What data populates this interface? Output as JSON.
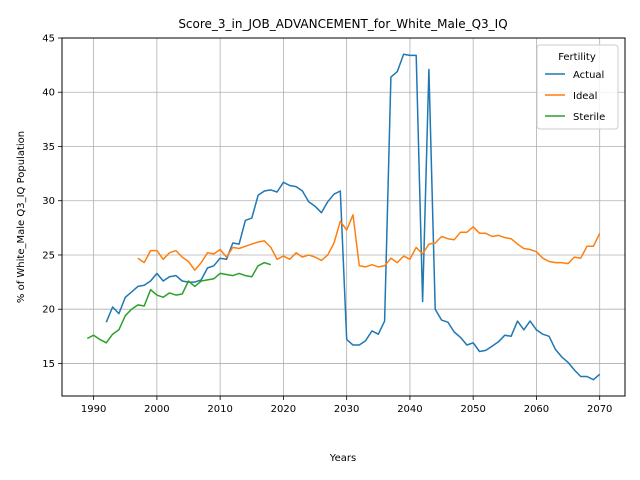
{
  "chart_data": {
    "type": "line",
    "title": "Score_3_in_JOB_ADVANCEMENT_for_White_Male_Q3_IQ",
    "xlabel": "Years",
    "ylabel": "% of White_Male Q3_IQ Population",
    "xlim": [
      1985,
      2074
    ],
    "ylim": [
      12,
      45
    ],
    "xticks": [
      1990,
      2000,
      2010,
      2020,
      2030,
      2040,
      2050,
      2060,
      2070
    ],
    "yticks": [
      15,
      20,
      25,
      30,
      35,
      40,
      45
    ],
    "grid": true,
    "legend": {
      "title": "Fertility",
      "position": "top-right"
    },
    "series": [
      {
        "name": "Actual",
        "color": "#1f77b4",
        "points": [
          [
            1992,
            18.8
          ],
          [
            1993,
            20.2
          ],
          [
            1994,
            19.6
          ],
          [
            1995,
            21.1
          ],
          [
            1996,
            21.6
          ],
          [
            1997,
            22.1
          ],
          [
            1998,
            22.2
          ],
          [
            1999,
            22.6
          ],
          [
            2000,
            23.3
          ],
          [
            2001,
            22.6
          ],
          [
            2002,
            23.0
          ],
          [
            2003,
            23.1
          ],
          [
            2004,
            22.6
          ],
          [
            2005,
            22.5
          ],
          [
            2006,
            22.5
          ],
          [
            2007,
            22.7
          ],
          [
            2008,
            23.8
          ],
          [
            2009,
            24.0
          ],
          [
            2010,
            24.7
          ],
          [
            2011,
            24.6
          ],
          [
            2012,
            26.1
          ],
          [
            2013,
            26.0
          ],
          [
            2014,
            28.2
          ],
          [
            2015,
            28.4
          ],
          [
            2016,
            30.5
          ],
          [
            2017,
            30.9
          ],
          [
            2018,
            31.0
          ],
          [
            2019,
            30.8
          ],
          [
            2020,
            31.7
          ],
          [
            2021,
            31.4
          ],
          [
            2022,
            31.3
          ],
          [
            2023,
            30.9
          ],
          [
            2024,
            29.9
          ],
          [
            2025,
            29.5
          ],
          [
            2026,
            28.9
          ],
          [
            2027,
            29.9
          ],
          [
            2028,
            30.6
          ],
          [
            2029,
            30.9
          ],
          [
            2030,
            17.2
          ],
          [
            2031,
            16.7
          ],
          [
            2032,
            16.7
          ],
          [
            2033,
            17.1
          ],
          [
            2034,
            18.0
          ],
          [
            2035,
            17.7
          ],
          [
            2036,
            18.9
          ],
          [
            2037,
            41.4
          ],
          [
            2038,
            41.9
          ],
          [
            2039,
            43.5
          ],
          [
            2040,
            43.4
          ],
          [
            2041,
            43.4
          ],
          [
            2042,
            20.7
          ],
          [
            2043,
            42.1
          ],
          [
            2044,
            20.0
          ],
          [
            2045,
            19.0
          ],
          [
            2046,
            18.8
          ],
          [
            2047,
            17.9
          ],
          [
            2048,
            17.4
          ],
          [
            2049,
            16.7
          ],
          [
            2050,
            16.9
          ],
          [
            2051,
            16.1
          ],
          [
            2052,
            16.2
          ],
          [
            2053,
            16.6
          ],
          [
            2054,
            17.0
          ],
          [
            2055,
            17.6
          ],
          [
            2056,
            17.5
          ],
          [
            2057,
            18.9
          ],
          [
            2058,
            18.1
          ],
          [
            2059,
            18.9
          ],
          [
            2060,
            18.1
          ],
          [
            2061,
            17.7
          ],
          [
            2062,
            17.5
          ],
          [
            2063,
            16.3
          ],
          [
            2064,
            15.6
          ],
          [
            2065,
            15.1
          ],
          [
            2066,
            14.4
          ],
          [
            2067,
            13.8
          ],
          [
            2068,
            13.8
          ],
          [
            2069,
            13.5
          ],
          [
            2070,
            14.0
          ]
        ]
      },
      {
        "name": "Ideal",
        "color": "#ff7f0e",
        "points": [
          [
            1997,
            24.7
          ],
          [
            1998,
            24.3
          ],
          [
            1999,
            25.4
          ],
          [
            2000,
            25.4
          ],
          [
            2001,
            24.6
          ],
          [
            2002,
            25.2
          ],
          [
            2003,
            25.4
          ],
          [
            2004,
            24.8
          ],
          [
            2005,
            24.4
          ],
          [
            2006,
            23.6
          ],
          [
            2007,
            24.3
          ],
          [
            2008,
            25.2
          ],
          [
            2009,
            25.1
          ],
          [
            2010,
            25.5
          ],
          [
            2011,
            24.8
          ],
          [
            2012,
            25.7
          ],
          [
            2013,
            25.6
          ],
          [
            2014,
            25.8
          ],
          [
            2015,
            26.0
          ],
          [
            2016,
            26.2
          ],
          [
            2017,
            26.3
          ],
          [
            2018,
            25.7
          ],
          [
            2019,
            24.6
          ],
          [
            2020,
            24.9
          ],
          [
            2021,
            24.6
          ],
          [
            2022,
            25.2
          ],
          [
            2023,
            24.8
          ],
          [
            2024,
            25.0
          ],
          [
            2025,
            24.8
          ],
          [
            2026,
            24.5
          ],
          [
            2027,
            25.0
          ],
          [
            2028,
            26.1
          ],
          [
            2029,
            28.1
          ],
          [
            2030,
            27.3
          ],
          [
            2031,
            28.7
          ],
          [
            2032,
            24.0
          ],
          [
            2033,
            23.9
          ],
          [
            2034,
            24.1
          ],
          [
            2035,
            23.9
          ],
          [
            2036,
            24.0
          ],
          [
            2037,
            24.7
          ],
          [
            2038,
            24.3
          ],
          [
            2039,
            24.9
          ],
          [
            2040,
            24.6
          ],
          [
            2041,
            25.7
          ],
          [
            2042,
            25.1
          ],
          [
            2043,
            26.0
          ],
          [
            2044,
            26.1
          ],
          [
            2045,
            26.7
          ],
          [
            2046,
            26.5
          ],
          [
            2047,
            26.4
          ],
          [
            2048,
            27.1
          ],
          [
            2049,
            27.1
          ],
          [
            2050,
            27.6
          ],
          [
            2051,
            27.0
          ],
          [
            2052,
            27.0
          ],
          [
            2053,
            26.7
          ],
          [
            2054,
            26.8
          ],
          [
            2055,
            26.6
          ],
          [
            2056,
            26.5
          ],
          [
            2057,
            26.0
          ],
          [
            2058,
            25.6
          ],
          [
            2059,
            25.5
          ],
          [
            2060,
            25.3
          ],
          [
            2061,
            24.7
          ],
          [
            2062,
            24.4
          ],
          [
            2063,
            24.3
          ],
          [
            2064,
            24.3
          ],
          [
            2065,
            24.2
          ],
          [
            2066,
            24.8
          ],
          [
            2067,
            24.7
          ],
          [
            2068,
            25.8
          ],
          [
            2069,
            25.8
          ],
          [
            2070,
            27.0
          ]
        ]
      },
      {
        "name": "Sterile",
        "color": "#2ca02c",
        "points": [
          [
            1989,
            17.3
          ],
          [
            1990,
            17.6
          ],
          [
            1991,
            17.2
          ],
          [
            1992,
            16.9
          ],
          [
            1993,
            17.7
          ],
          [
            1994,
            18.1
          ],
          [
            1995,
            19.4
          ],
          [
            1996,
            20.0
          ],
          [
            1997,
            20.4
          ],
          [
            1998,
            20.3
          ],
          [
            1999,
            21.8
          ],
          [
            2000,
            21.3
          ],
          [
            2001,
            21.1
          ],
          [
            2002,
            21.5
          ],
          [
            2003,
            21.3
          ],
          [
            2004,
            21.4
          ],
          [
            2005,
            22.6
          ],
          [
            2006,
            22.1
          ],
          [
            2007,
            22.6
          ],
          [
            2008,
            22.7
          ],
          [
            2009,
            22.8
          ],
          [
            2010,
            23.3
          ],
          [
            2011,
            23.2
          ],
          [
            2012,
            23.1
          ],
          [
            2013,
            23.3
          ],
          [
            2014,
            23.1
          ],
          [
            2015,
            23.0
          ],
          [
            2016,
            24.0
          ],
          [
            2017,
            24.3
          ],
          [
            2018,
            24.1
          ]
        ]
      }
    ]
  }
}
